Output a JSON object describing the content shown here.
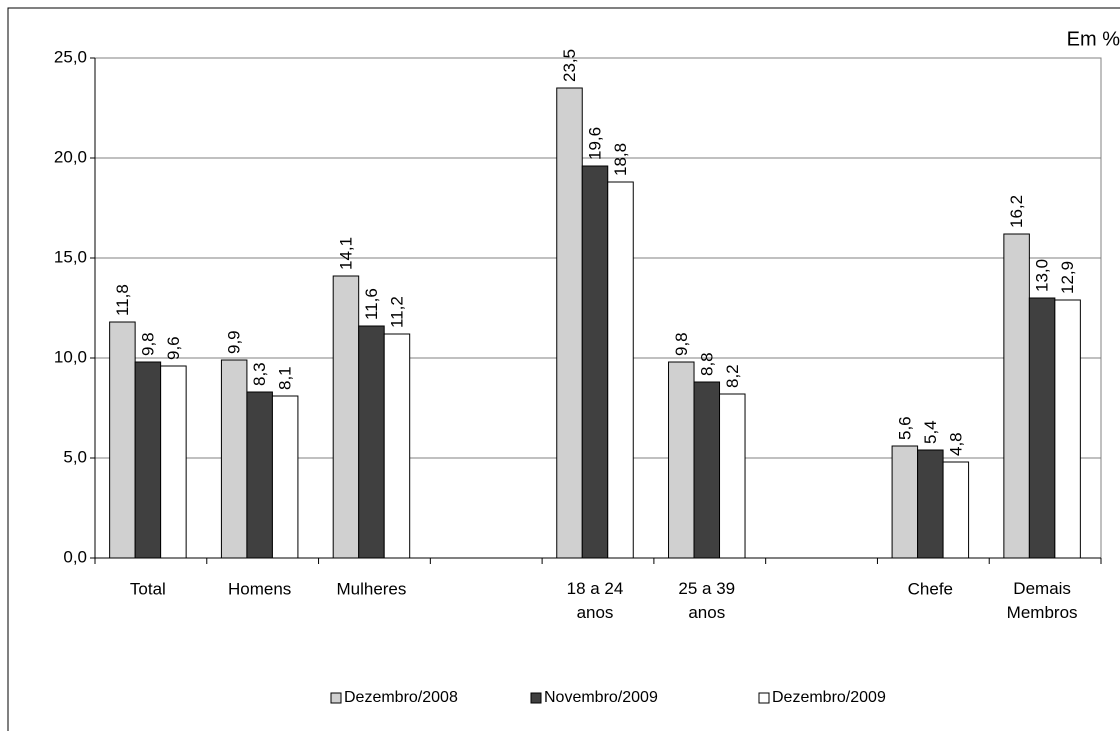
{
  "chart_data": {
    "type": "bar",
    "annotation": "Em %",
    "categories": [
      "Total",
      "Homens",
      "Mulheres",
      null,
      "18 a 24 anos",
      "25 a 39 anos",
      null,
      "Chefe",
      "Demais Membros"
    ],
    "series": [
      {
        "name": "Dezembro/2008",
        "color": "#d0d0d0",
        "values": [
          11.8,
          9.9,
          14.1,
          null,
          23.5,
          9.8,
          null,
          5.6,
          16.2
        ],
        "value_labels": [
          "11,8",
          "9,9",
          "14,1",
          null,
          "23,5",
          "9,8",
          null,
          "5,6",
          "16,2"
        ]
      },
      {
        "name": "Novembro/2009",
        "color": "#404040",
        "values": [
          9.8,
          8.3,
          11.6,
          null,
          19.6,
          8.8,
          null,
          5.4,
          13.0
        ],
        "value_labels": [
          "9,8",
          "8,3",
          "11,6",
          null,
          "19,6",
          "8,8",
          null,
          "5,4",
          "13,0"
        ]
      },
      {
        "name": "Dezembro/2009",
        "color": "#ffffff",
        "values": [
          9.6,
          8.1,
          11.2,
          null,
          18.8,
          8.2,
          null,
          4.8,
          12.9
        ],
        "value_labels": [
          "9,6",
          "8,1",
          "11,2",
          null,
          "18,8",
          "8,2",
          null,
          "4,8",
          "12,9"
        ]
      }
    ],
    "ylim": [
      0,
      25
    ],
    "yticks": [
      {
        "value": 0,
        "label": "0,0"
      },
      {
        "value": 5,
        "label": "5,0"
      },
      {
        "value": 10,
        "label": "10,0"
      },
      {
        "value": 15,
        "label": "15,0"
      },
      {
        "value": 20,
        "label": "20,0"
      },
      {
        "value": 25,
        "label": "25,0"
      }
    ],
    "grid": true,
    "legend": "bottom"
  }
}
